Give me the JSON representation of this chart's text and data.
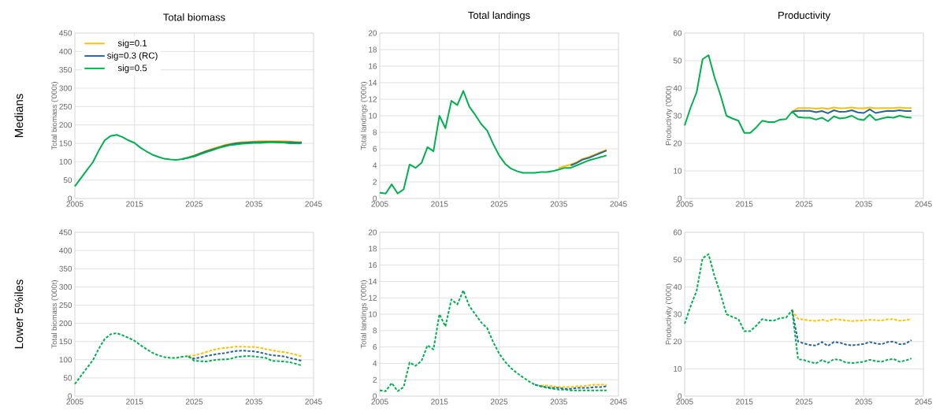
{
  "chart_data": [
    {
      "type": "line",
      "title": "Total biomass",
      "ylabel": "Total biomass ('000t)",
      "xlim": [
        2005,
        2045
      ],
      "xticks": [
        2005,
        2015,
        2025,
        2035,
        2045
      ],
      "ylim": [
        0,
        450
      ],
      "yticks": [
        0,
        50,
        100,
        150,
        200,
        250,
        300,
        350,
        400,
        450
      ],
      "grid": true,
      "legend": "top left",
      "line_style": "solid",
      "annotations": [
        "Medians"
      ],
      "series": [
        {
          "name": "sig=0.1",
          "color": "#ffc000",
          "x": [
            2024,
            2025,
            2026,
            2027,
            2028,
            2029,
            2030,
            2031,
            2032,
            2033,
            2034,
            2035,
            2036,
            2037,
            2038,
            2039,
            2040,
            2041,
            2042,
            2043
          ],
          "values": [
            112,
            117,
            123,
            129,
            135,
            140,
            145,
            148,
            151,
            153,
            154,
            155,
            156,
            156,
            156,
            156,
            156,
            155,
            154,
            153
          ]
        },
        {
          "name": "sig=0.3 (RC)",
          "color": "#2a6496",
          "x": [
            2023,
            2024,
            2025,
            2026,
            2027,
            2028,
            2029,
            2030,
            2031,
            2032,
            2033,
            2034,
            2035,
            2036,
            2037,
            2038,
            2039,
            2040,
            2041,
            2042,
            2043
          ],
          "values": [
            107,
            111,
            116,
            122,
            128,
            133,
            138,
            143,
            147,
            150,
            151,
            152,
            153,
            153,
            154,
            154,
            154,
            153,
            153,
            152,
            152
          ]
        },
        {
          "name": "sig=0.5",
          "color": "#00b050",
          "x": [
            2005,
            2006,
            2007,
            2008,
            2009,
            2010,
            2011,
            2012,
            2013,
            2014,
            2015,
            2016,
            2017,
            2018,
            2019,
            2020,
            2021,
            2022,
            2023,
            2024,
            2025,
            2026,
            2027,
            2028,
            2029,
            2030,
            2031,
            2032,
            2033,
            2034,
            2035,
            2036,
            2037,
            2038,
            2039,
            2040,
            2041,
            2042,
            2043
          ],
          "values": [
            33,
            55,
            77,
            98,
            130,
            158,
            170,
            173,
            167,
            158,
            151,
            138,
            128,
            119,
            113,
            108,
            106,
            105,
            107,
            111,
            114,
            120,
            126,
            131,
            137,
            141,
            145,
            147,
            149,
            150,
            151,
            151,
            152,
            153,
            152,
            152,
            150,
            150,
            150
          ]
        }
      ]
    },
    {
      "type": "line",
      "title": "Total landings",
      "ylabel": "Total landings ('000t)",
      "xlim": [
        2005,
        2045
      ],
      "xticks": [
        2005,
        2015,
        2025,
        2035,
        2045
      ],
      "ylim": [
        0,
        20
      ],
      "yticks": [
        0,
        2,
        4,
        6,
        8,
        10,
        12,
        14,
        16,
        18,
        20
      ],
      "grid": true,
      "line_style": "solid",
      "series": [
        {
          "color": "#ffc000",
          "x": [
            2035,
            2036,
            2037,
            2038,
            2039,
            2040,
            2041,
            2042,
            2043
          ],
          "values": [
            3.7,
            3.9,
            4.1,
            4.4,
            4.8,
            5.0,
            5.3,
            5.6,
            5.9
          ]
        },
        {
          "color": "#2a6496",
          "x": [
            2037,
            2038,
            2039,
            2040,
            2041,
            2042,
            2043
          ],
          "values": [
            4.0,
            4.3,
            4.7,
            4.9,
            5.2,
            5.5,
            5.8
          ]
        },
        {
          "color": "#00b050",
          "x": [
            2005,
            2006,
            2007,
            2008,
            2009,
            2010,
            2011,
            2012,
            2013,
            2014,
            2015,
            2016,
            2017,
            2018,
            2019,
            2020,
            2021,
            2022,
            2023,
            2024,
            2025,
            2026,
            2027,
            2028,
            2029,
            2030,
            2031,
            2032,
            2033,
            2034,
            2035,
            2036,
            2037,
            2038,
            2039,
            2040,
            2041,
            2042,
            2043
          ],
          "values": [
            0.7,
            0.6,
            1.7,
            0.6,
            1.1,
            4.1,
            3.7,
            4.3,
            6.2,
            5.7,
            10,
            8.5,
            11.8,
            11.3,
            13,
            11.1,
            10.1,
            9.0,
            8.2,
            6.6,
            5.2,
            4.2,
            3.6,
            3.3,
            3.1,
            3.1,
            3.1,
            3.2,
            3.2,
            3.3,
            3.5,
            3.7,
            3.7,
            4.0,
            4.3,
            4.6,
            4.8,
            5.0,
            5.2
          ]
        }
      ]
    },
    {
      "type": "line",
      "title": "Productivity",
      "ylabel": "Productivty ('000t)",
      "xlim": [
        2005,
        2045
      ],
      "xticks": [
        2005,
        2015,
        2025,
        2035,
        2045
      ],
      "ylim": [
        0,
        60
      ],
      "yticks": [
        0,
        10,
        20,
        30,
        40,
        50,
        60
      ],
      "grid": true,
      "line_style": "solid",
      "series": [
        {
          "color": "#ffc000",
          "x": [
            2023,
            2024,
            2025,
            2026,
            2027,
            2028,
            2029,
            2030,
            2031,
            2032,
            2033,
            2034,
            2035,
            2036,
            2037,
            2038,
            2039,
            2040,
            2041,
            2042,
            2043
          ],
          "values": [
            31.5,
            32.8,
            32.8,
            32.8,
            32.6,
            32.8,
            32.5,
            33.0,
            32.7,
            32.8,
            33.0,
            32.7,
            32.7,
            33.0,
            32.7,
            32.8,
            32.8,
            32.8,
            33.0,
            32.8,
            32.8
          ]
        },
        {
          "color": "#2a6496",
          "x": [
            2023,
            2024,
            2025,
            2026,
            2027,
            2028,
            2029,
            2030,
            2031,
            2032,
            2033,
            2034,
            2035,
            2036,
            2037,
            2038,
            2039,
            2040,
            2041,
            2042,
            2043
          ],
          "values": [
            31.5,
            31.8,
            31.8,
            31.8,
            31.3,
            31.7,
            30.9,
            32.0,
            31.4,
            31.5,
            32.0,
            31.2,
            31.0,
            32.3,
            31.0,
            31.4,
            31.8,
            31.7,
            32.0,
            31.7,
            31.7
          ]
        },
        {
          "color": "#00b050",
          "x": [
            2005,
            2006,
            2007,
            2008,
            2009,
            2010,
            2011,
            2012,
            2013,
            2014,
            2015,
            2016,
            2017,
            2018,
            2019,
            2020,
            2021,
            2022,
            2023,
            2024,
            2025,
            2026,
            2027,
            2028,
            2029,
            2030,
            2031,
            2032,
            2033,
            2034,
            2035,
            2036,
            2037,
            2038,
            2039,
            2040,
            2041,
            2042,
            2043
          ],
          "values": [
            26.5,
            33,
            38.5,
            50.5,
            52,
            44,
            37.5,
            30,
            29,
            28.2,
            23.8,
            23.8,
            25.8,
            28.2,
            27.7,
            27.7,
            28.6,
            28.8,
            31.5,
            29.5,
            29.3,
            29.3,
            28.6,
            29.3,
            28.0,
            29.8,
            29.0,
            29.3,
            30.0,
            28.8,
            28.4,
            30.4,
            28.4,
            29.0,
            29.5,
            29.3,
            30.0,
            29.5,
            29.3
          ]
        }
      ]
    },
    {
      "type": "line",
      "ylabel": "Total biomass ('000t)",
      "xlim": [
        2005,
        2045
      ],
      "xticks": [
        2005,
        2015,
        2025,
        2035,
        2045
      ],
      "ylim": [
        0,
        450
      ],
      "yticks": [
        0,
        50,
        100,
        150,
        200,
        250,
        300,
        350,
        400,
        450
      ],
      "grid": true,
      "line_style": "dashed",
      "annotations": [
        "Lower 5%iles"
      ],
      "series": [
        {
          "color": "#ffc000",
          "x": [
            2024,
            2025,
            2026,
            2027,
            2028,
            2029,
            2030,
            2031,
            2032,
            2033,
            2034,
            2035,
            2036,
            2037,
            2038,
            2039,
            2040,
            2041,
            2042,
            2043
          ],
          "values": [
            110,
            112,
            116,
            121,
            126,
            130,
            132,
            134,
            136,
            136,
            135,
            135,
            133,
            129,
            126,
            123,
            121,
            118,
            114,
            109
          ]
        },
        {
          "color": "#2a6496",
          "x": [
            2024,
            2025,
            2026,
            2027,
            2028,
            2029,
            2030,
            2031,
            2032,
            2033,
            2034,
            2035,
            2036,
            2037,
            2038,
            2039,
            2040,
            2041,
            2042,
            2043
          ],
          "values": [
            108,
            103,
            106,
            110,
            113,
            116,
            118,
            121,
            124,
            125,
            124,
            123,
            120,
            116,
            112,
            111,
            109,
            105,
            101,
            97
          ]
        },
        {
          "color": "#00b050",
          "x": [
            2005,
            2006,
            2007,
            2008,
            2009,
            2010,
            2011,
            2012,
            2013,
            2014,
            2015,
            2016,
            2017,
            2018,
            2019,
            2020,
            2021,
            2022,
            2023,
            2024,
            2025,
            2026,
            2027,
            2028,
            2029,
            2030,
            2031,
            2032,
            2033,
            2034,
            2035,
            2036,
            2037,
            2038,
            2039,
            2040,
            2041,
            2042,
            2043
          ],
          "values": [
            33,
            55,
            77,
            98,
            130,
            157,
            170,
            173,
            167,
            160,
            152,
            140,
            129,
            119,
            112,
            107,
            105,
            105,
            108,
            110,
            97,
            96,
            95,
            98,
            100,
            101,
            102,
            107,
            109,
            110,
            109,
            107,
            105,
            97,
            96,
            95,
            93,
            89,
            84
          ]
        }
      ]
    },
    {
      "type": "line",
      "ylabel": "Total landings ('000t)",
      "xlim": [
        2005,
        2045
      ],
      "xticks": [
        2005,
        2015,
        2025,
        2035,
        2045
      ],
      "ylim": [
        0,
        20
      ],
      "yticks": [
        0,
        2,
        4,
        6,
        8,
        10,
        12,
        14,
        16,
        18,
        20
      ],
      "grid": true,
      "line_style": "dashed",
      "series": [
        {
          "color": "#ffc000",
          "x": [
            2032,
            2033,
            2034,
            2035,
            2036,
            2037,
            2038,
            2039,
            2040,
            2041,
            2042,
            2043
          ],
          "values": [
            1.3,
            1.3,
            1.2,
            1.1,
            1.1,
            1.1,
            1.2,
            1.2,
            1.3,
            1.4,
            1.4,
            1.4
          ]
        },
        {
          "color": "#2a6496",
          "x": [
            2031,
            2032,
            2033,
            2034,
            2035,
            2036,
            2037,
            2038,
            2039,
            2040,
            2041,
            2042,
            2043
          ],
          "values": [
            1.4,
            1.2,
            1.1,
            1.0,
            1.0,
            0.9,
            0.9,
            1.0,
            1.0,
            1.0,
            1.1,
            1.1,
            1.2
          ]
        },
        {
          "color": "#00b050",
          "x": [
            2005,
            2006,
            2007,
            2008,
            2009,
            2010,
            2011,
            2012,
            2013,
            2014,
            2015,
            2016,
            2017,
            2018,
            2019,
            2020,
            2021,
            2022,
            2023,
            2024,
            2025,
            2026,
            2027,
            2028,
            2029,
            2030,
            2031,
            2032,
            2033,
            2034,
            2035,
            2036,
            2037,
            2038,
            2039,
            2040,
            2041,
            2042,
            2043
          ],
          "values": [
            0.7,
            0.6,
            1.6,
            0.6,
            1.1,
            4.1,
            3.7,
            4.3,
            6.2,
            5.7,
            10,
            8.5,
            11.8,
            11.2,
            12.9,
            11.0,
            10.0,
            9.0,
            8.3,
            6.6,
            5.2,
            4.2,
            3.4,
            2.8,
            2.3,
            1.8,
            1.4,
            1.2,
            1.0,
            0.9,
            0.8,
            0.8,
            0.7,
            0.7,
            0.7,
            0.7,
            0.7,
            0.7,
            0.7
          ]
        }
      ]
    },
    {
      "type": "line",
      "ylabel": "Productivity ('000t)",
      "xlim": [
        2005,
        2045
      ],
      "xticks": [
        2005,
        2015,
        2025,
        2035,
        2045
      ],
      "ylim": [
        0,
        60
      ],
      "yticks": [
        0,
        10,
        20,
        30,
        40,
        50,
        60
      ],
      "grid": true,
      "line_style": "dashed",
      "series": [
        {
          "color": "#ffc000",
          "x": [
            2023,
            2024,
            2025,
            2026,
            2027,
            2028,
            2029,
            2030,
            2031,
            2032,
            2033,
            2034,
            2035,
            2036,
            2037,
            2038,
            2039,
            2040,
            2041,
            2042,
            2043
          ],
          "values": [
            31.5,
            28.3,
            28.0,
            27.7,
            27.5,
            28.0,
            27.5,
            28.2,
            28.0,
            27.7,
            27.5,
            27.6,
            27.7,
            28.0,
            27.8,
            27.7,
            28.1,
            28.2,
            27.6,
            27.8,
            28.3
          ]
        },
        {
          "color": "#2a6496",
          "x": [
            2023,
            2024,
            2025,
            2026,
            2027,
            2028,
            2029,
            2030,
            2031,
            2032,
            2033,
            2034,
            2035,
            2036,
            2037,
            2038,
            2039,
            2040,
            2041,
            2042,
            2043
          ],
          "values": [
            31.5,
            20,
            19.3,
            18.7,
            18.5,
            19.8,
            18.4,
            19.8,
            19.6,
            18.9,
            18.6,
            18.8,
            19.1,
            19.8,
            19.3,
            19.0,
            19.8,
            20.0,
            19.0,
            19.2,
            20.5
          ]
        },
        {
          "color": "#00b050",
          "x": [
            2005,
            2006,
            2007,
            2008,
            2009,
            2010,
            2011,
            2012,
            2013,
            2014,
            2015,
            2016,
            2017,
            2018,
            2019,
            2020,
            2021,
            2022,
            2023,
            2024,
            2025,
            2026,
            2027,
            2028,
            2029,
            2030,
            2031,
            2032,
            2033,
            2034,
            2035,
            2036,
            2037,
            2038,
            2039,
            2040,
            2041,
            2042,
            2043
          ],
          "values": [
            26.5,
            33,
            38.5,
            50.5,
            52,
            44,
            37.5,
            30,
            29,
            28.2,
            23.8,
            23.8,
            25.8,
            28.2,
            27.7,
            27.7,
            28.6,
            28.8,
            31.5,
            13.5,
            13.2,
            12.5,
            12.0,
            13.2,
            12.2,
            13.5,
            13.3,
            12.3,
            12.1,
            12.3,
            12.6,
            13.3,
            12.8,
            12.6,
            13.3,
            13.6,
            12.6,
            13.0,
            13.8
          ]
        }
      ]
    }
  ]
}
